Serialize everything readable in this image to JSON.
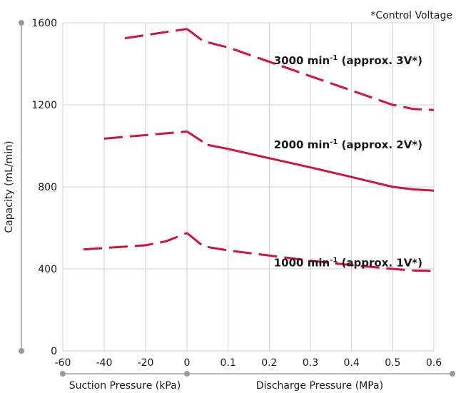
{
  "chart_data": {
    "type": "line",
    "title": "",
    "note": "*Control Voltage",
    "ylabel": "Capacity (mL/min)",
    "ylim": [
      0,
      1600
    ],
    "yticks": [
      0,
      400,
      800,
      1200,
      1600
    ],
    "grid": true,
    "x_regions": [
      {
        "name": "suction",
        "label": "Suction Pressure (kPa)",
        "unit": "kPa",
        "range": [
          -60,
          0
        ],
        "ticks": [
          -60,
          -40,
          -20,
          0
        ],
        "tick_labels": [
          "-60",
          "-40",
          "-20",
          "0"
        ]
      },
      {
        "name": "discharge",
        "label": "Discharge Pressure (MPa)",
        "unit": "MPa",
        "range": [
          0,
          0.6
        ],
        "ticks": [
          0.1,
          0.2,
          0.3,
          0.4,
          0.5,
          0.6
        ],
        "tick_labels": [
          "0.1",
          "0.2",
          "0.3",
          "0.4",
          "0.5",
          "0.6"
        ]
      }
    ],
    "series": [
      {
        "name": "3000 min-1 (approx. 3V*)",
        "label_main": "3000 min",
        "label_sup": "-1",
        "label_rest": " (approx. 3V*)",
        "color": "#d2143a",
        "segments": [
          {
            "region": "suction",
            "style": "dashed",
            "points": [
              [
                -30,
                1525
              ],
              [
                0,
                1570
              ]
            ]
          },
          {
            "region": "discharge",
            "style": "dashed",
            "points": [
              [
                0,
                1570
              ],
              [
                0.04,
                1510
              ],
              [
                0.1,
                1480
              ],
              [
                0.2,
                1410
              ],
              [
                0.3,
                1340
              ],
              [
                0.4,
                1270
              ],
              [
                0.5,
                1200
              ],
              [
                0.55,
                1180
              ],
              [
                0.6,
                1175
              ]
            ]
          }
        ]
      },
      {
        "name": "2000 min-1 (approx. 2V*)",
        "label_main": "2000 min",
        "label_sup": "-1",
        "label_rest": " (approx. 2V*)",
        "color": "#d2143a",
        "segments": [
          {
            "region": "suction",
            "style": "dashed",
            "points": [
              [
                -40,
                1035
              ],
              [
                0,
                1070
              ]
            ]
          },
          {
            "region": "discharge",
            "style": "dashed",
            "points": [
              [
                0,
                1070
              ],
              [
                0.05,
                1005
              ]
            ]
          },
          {
            "region": "discharge",
            "style": "solid",
            "points": [
              [
                0.05,
                1005
              ],
              [
                0.1,
                985
              ],
              [
                0.2,
                940
              ],
              [
                0.3,
                895
              ],
              [
                0.4,
                848
              ],
              [
                0.5,
                800
              ],
              [
                0.55,
                788
              ],
              [
                0.6,
                782
              ]
            ]
          }
        ]
      },
      {
        "name": "1000 min-1 (approx. 1V*)",
        "label_main": "1000 min",
        "label_sup": "-1",
        "label_rest": " (approx. 1V*)",
        "color": "#d2143a",
        "segments": [
          {
            "region": "suction",
            "style": "dashed",
            "points": [
              [
                -50,
                495
              ],
              [
                -20,
                515
              ],
              [
                -10,
                535
              ],
              [
                0,
                575
              ]
            ]
          },
          {
            "region": "discharge",
            "style": "dashed",
            "points": [
              [
                0,
                575
              ],
              [
                0.04,
                510
              ],
              [
                0.1,
                490
              ],
              [
                0.2,
                465
              ],
              [
                0.3,
                440
              ],
              [
                0.4,
                418
              ],
              [
                0.5,
                400
              ],
              [
                0.55,
                392
              ],
              [
                0.6,
                390
              ]
            ]
          }
        ]
      }
    ]
  }
}
